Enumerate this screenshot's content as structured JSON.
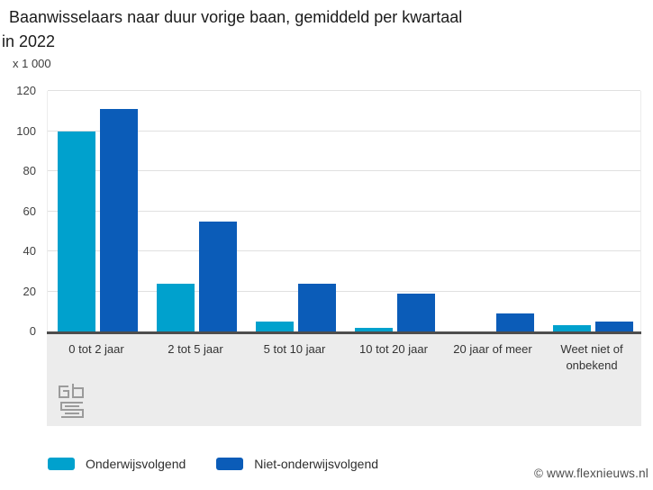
{
  "page": {
    "title_line1": "Baanwisselaars naar duur vorige baan, gemiddeld per kwartaal",
    "title_line2": "in 2022",
    "unit_label": "x 1 000",
    "watermark": "© www.flexnieuws.nl"
  },
  "branding": {
    "logo": "cbs-logo"
  },
  "chart_data": {
    "type": "bar",
    "title": "Baanwisselaars naar duur vorige baan, gemiddeld per kwartaal in 2022",
    "ylabel": "x 1 000",
    "xlabel": "",
    "categories": [
      "0 tot 2 jaar",
      "2 tot 5 jaar",
      "5 tot 10 jaar",
      "10 tot 20 jaar",
      "20 jaar of meer",
      "Weet niet of onbekend"
    ],
    "series": [
      {
        "name": "Onderwijsvolgend",
        "color": "#00a1cd",
        "values": [
          100,
          24,
          5,
          2,
          0,
          3
        ]
      },
      {
        "name": "Niet-onderwijsvolgend",
        "color": "#0b5cb8",
        "values": [
          111,
          55,
          24,
          19,
          9,
          5
        ]
      }
    ],
    "ylim": [
      0,
      120
    ],
    "y_ticks": [
      0,
      20,
      40,
      60,
      80,
      100,
      120
    ],
    "grid": true,
    "legend_position": "bottom",
    "axis_colors": {
      "gridline": "#e0e0e0",
      "baseline": "#4d4d4d",
      "label_band": "#ececec"
    }
  }
}
